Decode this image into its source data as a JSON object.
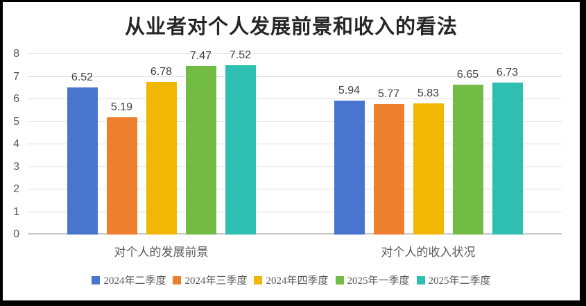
{
  "chart_data": {
    "type": "bar",
    "title": "从业者对个人发展前景和收入的看法",
    "categories": [
      "对个人的发展前景",
      "对个人的收入状况"
    ],
    "series": [
      {
        "name": "2024年二季度",
        "color": "#4876CE",
        "values": [
          6.52,
          5.94
        ]
      },
      {
        "name": "2024年三季度",
        "color": "#EE7F2E",
        "values": [
          5.19,
          5.77
        ]
      },
      {
        "name": "2024年四季度",
        "color": "#F2B705",
        "values": [
          6.78,
          5.83
        ]
      },
      {
        "name": "2025年一季度",
        "color": "#72BB44",
        "values": [
          7.47,
          6.65
        ]
      },
      {
        "name": "2025年二季度",
        "color": "#2EBFB1",
        "values": [
          7.52,
          6.73
        ]
      }
    ],
    "ylim": [
      0,
      8
    ],
    "yticks": [
      0,
      1,
      2,
      3,
      4,
      5,
      6,
      7,
      8
    ],
    "grid": true,
    "legend_position": "bottom",
    "value_label_decimals": 2,
    "colors": {
      "title_text": "#262626",
      "axis_text": "#595959",
      "value_label_text": "#404040",
      "gridline": "#dcdcdc",
      "baseline": "#c9c9c9",
      "frame_border": "#000000",
      "background": "#ffffff"
    }
  }
}
